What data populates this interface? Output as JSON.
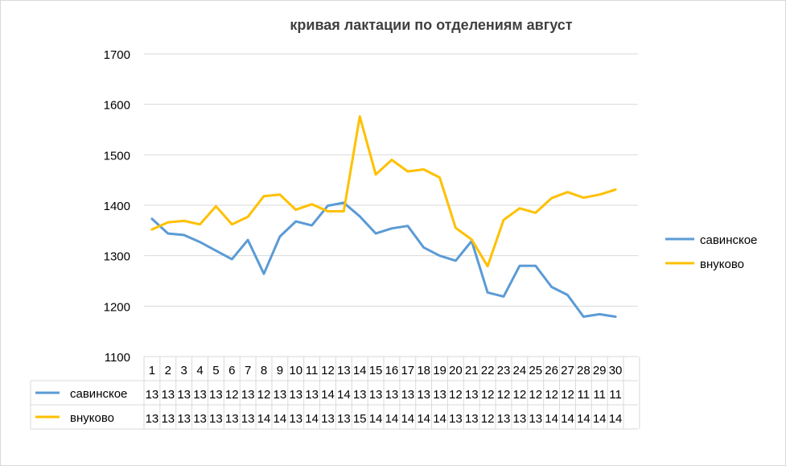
{
  "chart_data": {
    "type": "line",
    "title": "кривая лактации по отделениям август",
    "xlabel": "",
    "ylabel": "",
    "ylim": [
      1100,
      1700
    ],
    "yticks": [
      "1100",
      "1200",
      "1300",
      "1400",
      "1500",
      "1600",
      "1700"
    ],
    "grid": true,
    "legend_position": "right",
    "categories": [
      "1",
      "2",
      "3",
      "4",
      "5",
      "6",
      "7",
      "8",
      "9",
      "10",
      "11",
      "12",
      "13",
      "14",
      "15",
      "16",
      "17",
      "18",
      "19",
      "20",
      "21",
      "22",
      "23",
      "24",
      "25",
      "26",
      "27",
      "28",
      "29",
      "30"
    ],
    "series": [
      {
        "name": "савинское",
        "color": "#5b9bd5",
        "values": [
          1373,
          1344,
          1341,
          1327,
          1310,
          1293,
          1331,
          1264,
          1338,
          1368,
          1360,
          1399,
          1405,
          1378,
          1344,
          1354,
          1359,
          1316,
          1300,
          1290,
          1329,
          1227,
          1219,
          1280,
          1280,
          1238,
          1222,
          1179,
          1184,
          1179
        ],
        "table_values": [
          "13",
          "13",
          "13",
          "13",
          "13",
          "12",
          "13",
          "12",
          "13",
          "13",
          "13",
          "14",
          "14",
          "13",
          "13",
          "13",
          "13",
          "13",
          "13",
          "12",
          "13",
          "12",
          "12",
          "12",
          "12",
          "12",
          "12",
          "11",
          "11",
          "11"
        ]
      },
      {
        "name": "внуково",
        "color": "#ffc000",
        "values": [
          1352,
          1366,
          1369,
          1362,
          1398,
          1362,
          1377,
          1418,
          1421,
          1391,
          1402,
          1388,
          1388,
          1576,
          1461,
          1490,
          1467,
          1471,
          1455,
          1355,
          1332,
          1279,
          1371,
          1394,
          1385,
          1414,
          1426,
          1415,
          1421,
          1431
        ],
        "table_values": [
          "13",
          "13",
          "13",
          "13",
          "13",
          "13",
          "13",
          "14",
          "14",
          "13",
          "14",
          "13",
          "13",
          "15",
          "14",
          "14",
          "14",
          "14",
          "14",
          "13",
          "13",
          "12",
          "13",
          "13",
          "13",
          "14",
          "14",
          "14",
          "14",
          "14"
        ]
      }
    ]
  }
}
